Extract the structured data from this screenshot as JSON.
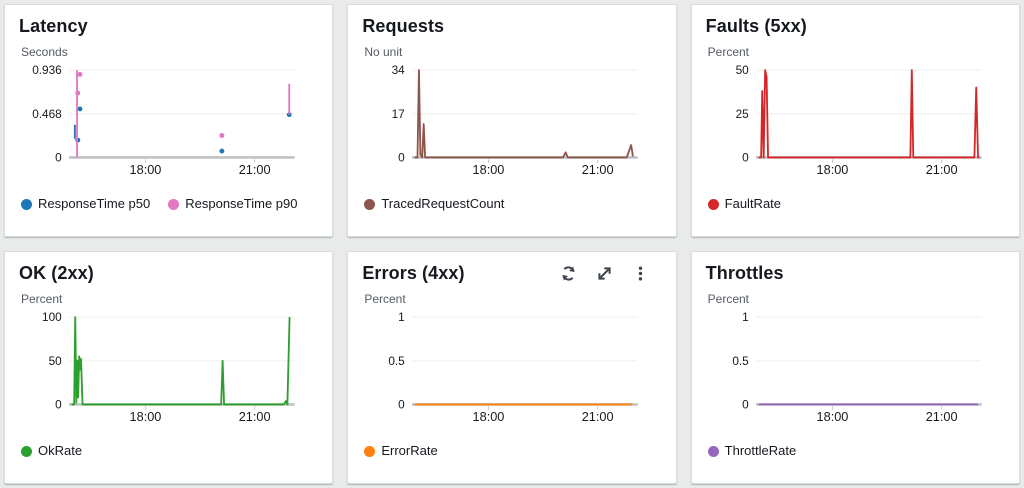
{
  "page": {
    "background_color": "#e9eaea",
    "panel_background": "#ffffff",
    "title_color": "#16191f",
    "axis_color": "#bfc3c3",
    "grid_color": "#eeeeee"
  },
  "chart_data": [
    {
      "type": "scatter",
      "title": "Latency",
      "unit": "Seconds",
      "y_ticks": [
        0,
        0.468,
        0.936
      ],
      "y_max": 0.936,
      "x_domain": [
        15.9,
        22.1
      ],
      "x_ticks": [
        {
          "value": 18,
          "label": "18:00"
        },
        {
          "value": 21,
          "label": "21:00"
        }
      ],
      "grid": true,
      "legend_position": "bottom",
      "series": [
        {
          "name": "ResponseTime p50",
          "color": "#1f77b4",
          "paths": [
            [
              [
                16.06,
                0.2
              ],
              [
                16.06,
                0.35
              ]
            ]
          ],
          "points": [
            [
              16.2,
              0.52
            ],
            [
              16.14,
              0.185
            ],
            [
              20.1,
              0.068
            ],
            [
              21.95,
              0.458
            ]
          ]
        },
        {
          "name": "ResponseTime p90",
          "color": "#e377c2",
          "paths": [
            [
              [
                16.12,
                0.0
              ],
              [
                16.12,
                0.936
              ]
            ],
            [
              [
                21.95,
                0.46
              ],
              [
                21.95,
                0.79
              ]
            ]
          ],
          "points": [
            [
              16.2,
              0.89
            ],
            [
              16.14,
              0.69
            ],
            [
              20.1,
              0.235
            ]
          ]
        }
      ]
    },
    {
      "type": "line",
      "title": "Requests",
      "unit": "No unit",
      "y_ticks": [
        0,
        17,
        34
      ],
      "y_max": 34,
      "x_domain": [
        15.9,
        22.1
      ],
      "x_ticks": [
        {
          "value": 18,
          "label": "18:00"
        },
        {
          "value": 21,
          "label": "21:00"
        }
      ],
      "grid": true,
      "legend_position": "bottom",
      "series": [
        {
          "name": "TracedRequestCount",
          "color": "#8c564b",
          "paths": [
            [
              [
                15.97,
                0
              ],
              [
                16.05,
                0
              ],
              [
                16.09,
                34
              ],
              [
                16.13,
                1
              ],
              [
                16.18,
                0
              ],
              [
                16.22,
                13
              ],
              [
                16.26,
                0
              ],
              [
                20.05,
                0
              ],
              [
                20.12,
                2
              ],
              [
                20.18,
                0
              ],
              [
                21.8,
                0
              ],
              [
                21.92,
                4.8
              ],
              [
                21.97,
                0.4
              ]
            ]
          ],
          "points": []
        }
      ]
    },
    {
      "type": "line",
      "title": "Faults (5xx)",
      "unit": "Percent",
      "y_ticks": [
        0,
        25,
        50
      ],
      "y_max": 50,
      "x_domain": [
        15.9,
        22.1
      ],
      "x_ticks": [
        {
          "value": 18,
          "label": "18:00"
        },
        {
          "value": 21,
          "label": "21:00"
        }
      ],
      "grid": true,
      "legend_position": "bottom",
      "series": [
        {
          "name": "FaultRate",
          "color": "#d62728",
          "paths": [
            [
              [
                15.97,
                0
              ],
              [
                16.04,
                0
              ],
              [
                16.07,
                38
              ],
              [
                16.11,
                0
              ],
              [
                16.15,
                50
              ],
              [
                16.19,
                46
              ],
              [
                16.23,
                0
              ],
              [
                20.14,
                0
              ],
              [
                20.18,
                50
              ],
              [
                20.22,
                0
              ],
              [
                21.9,
                0
              ],
              [
                21.95,
                40
              ],
              [
                22.0,
                0
              ],
              [
                22.04,
                0
              ]
            ]
          ],
          "points": []
        }
      ]
    },
    {
      "type": "line",
      "title": "OK (2xx)",
      "unit": "Percent",
      "y_ticks": [
        0,
        50,
        100
      ],
      "y_max": 100,
      "x_domain": [
        15.9,
        22.1
      ],
      "x_ticks": [
        {
          "value": 18,
          "label": "18:00"
        },
        {
          "value": 21,
          "label": "21:00"
        }
      ],
      "grid": true,
      "legend_position": "bottom",
      "series": [
        {
          "name": "OkRate",
          "color": "#2ca02c",
          "paths": [
            [
              [
                15.97,
                0
              ],
              [
                16.04,
                0
              ],
              [
                16.07,
                100
              ],
              [
                16.1,
                2
              ],
              [
                16.13,
                50
              ],
              [
                16.15,
                8
              ],
              [
                16.18,
                55
              ],
              [
                16.21,
                40
              ],
              [
                16.23,
                52
              ],
              [
                16.27,
                0
              ],
              [
                20.08,
                0
              ],
              [
                20.12,
                50
              ],
              [
                20.16,
                0
              ],
              [
                21.8,
                0
              ],
              [
                21.86,
                4
              ],
              [
                21.9,
                0
              ],
              [
                21.96,
                100
              ]
            ]
          ],
          "points": []
        }
      ]
    },
    {
      "type": "line",
      "title": "Errors (4xx)",
      "unit": "Percent",
      "y_ticks": [
        0,
        0.5,
        1
      ],
      "y_max": 1,
      "x_domain": [
        15.9,
        22.1
      ],
      "x_ticks": [
        {
          "value": 18,
          "label": "18:00"
        },
        {
          "value": 21,
          "label": "21:00"
        }
      ],
      "grid": true,
      "legend_position": "bottom",
      "toolbar_icons": [
        "refresh-icon",
        "expand-icon",
        "overflow-menu-icon"
      ],
      "series": [
        {
          "name": "ErrorRate",
          "color": "#ff7f0e",
          "paths": [
            [
              [
                15.97,
                0
              ],
              [
                21.95,
                0
              ]
            ]
          ],
          "points": []
        }
      ]
    },
    {
      "type": "line",
      "title": "Throttles",
      "unit": "Percent",
      "y_ticks": [
        0,
        0.5,
        1
      ],
      "y_max": 1,
      "x_domain": [
        15.9,
        22.1
      ],
      "x_ticks": [
        {
          "value": 18,
          "label": "18:00"
        },
        {
          "value": 21,
          "label": "21:00"
        }
      ],
      "grid": true,
      "legend_position": "bottom",
      "series": [
        {
          "name": "ThrottleRate",
          "color": "#9467bd",
          "paths": [
            [
              [
                15.97,
                0
              ],
              [
                22.0,
                0
              ]
            ]
          ],
          "points": []
        }
      ]
    }
  ]
}
